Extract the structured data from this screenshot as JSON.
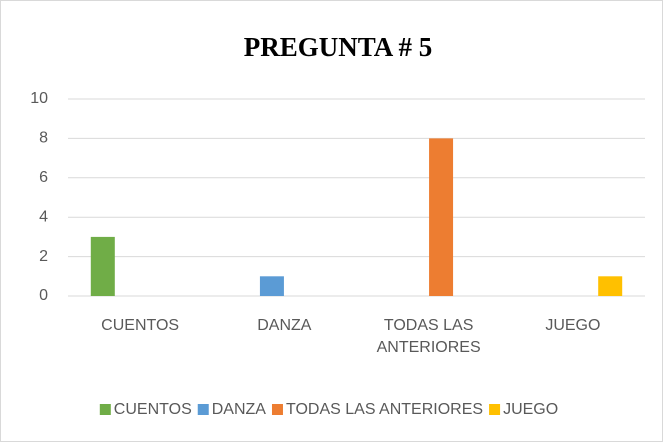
{
  "chart_data": {
    "type": "bar",
    "title": "PREGUNTA # 5",
    "categories": [
      "CUENTOS",
      "DANZA",
      "TODAS LAS ANTERIORES",
      "JUEGO"
    ],
    "series": [
      {
        "name": "CUENTOS",
        "color": "#70ad47",
        "values": [
          3,
          null,
          null,
          null
        ]
      },
      {
        "name": "DANZA",
        "color": "#5b9bd5",
        "values": [
          null,
          1,
          null,
          null
        ]
      },
      {
        "name": "TODAS LAS ANTERIORES",
        "color": "#ed7d31",
        "values": [
          null,
          null,
          8,
          null
        ]
      },
      {
        "name": "JUEGO",
        "color": "#ffc000",
        "values": [
          null,
          null,
          null,
          1
        ]
      }
    ],
    "ylim": [
      0,
      10
    ],
    "yticks": [
      0,
      2,
      4,
      6,
      8,
      10
    ],
    "grid": true,
    "legend": "bottom"
  }
}
